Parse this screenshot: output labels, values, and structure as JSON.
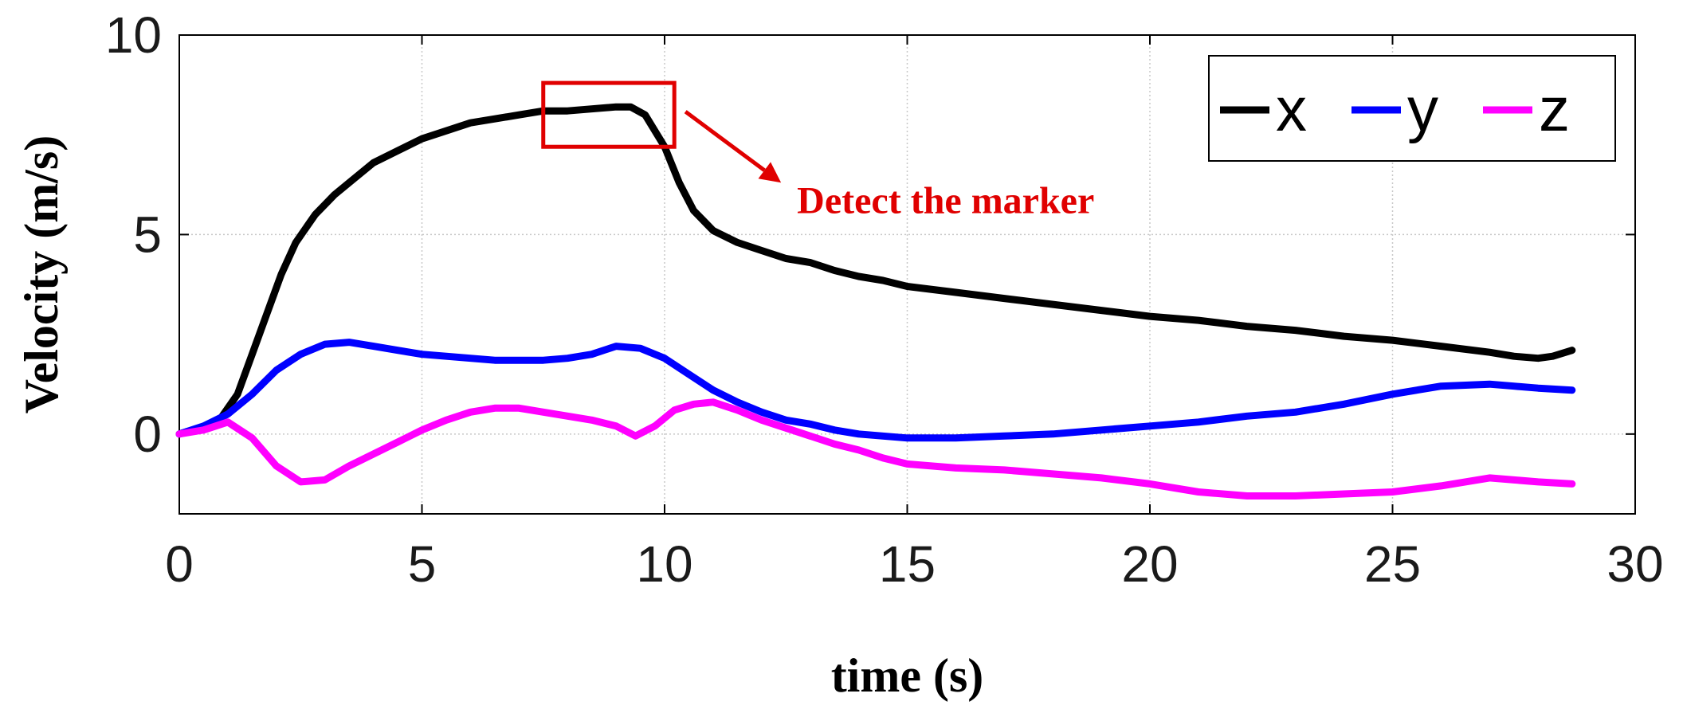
{
  "chart_data": {
    "type": "line",
    "title": "",
    "xlabel": "time (s)",
    "ylabel": "Velocity (m/s)",
    "xlim": [
      0,
      30
    ],
    "ylim": [
      -2,
      10
    ],
    "xticks": [
      0,
      5,
      10,
      15,
      20,
      25,
      30
    ],
    "xtick_labels": [
      "0",
      "5",
      "10",
      "15",
      "20",
      "25",
      "30"
    ],
    "yticks": [
      0,
      5,
      10
    ],
    "ytick_labels": [
      "0",
      "5",
      "10"
    ],
    "grid": true,
    "legend_position": "top-right",
    "series": [
      {
        "name": "x",
        "color": "#000000",
        "points": [
          [
            0,
            0
          ],
          [
            0.8,
            0.3
          ],
          [
            1.2,
            1.0
          ],
          [
            1.5,
            2.0
          ],
          [
            1.8,
            3.0
          ],
          [
            2.1,
            4.0
          ],
          [
            2.4,
            4.8
          ],
          [
            2.8,
            5.5
          ],
          [
            3.2,
            6.0
          ],
          [
            3.6,
            6.4
          ],
          [
            4.0,
            6.8
          ],
          [
            4.5,
            7.1
          ],
          [
            5.0,
            7.4
          ],
          [
            5.5,
            7.6
          ],
          [
            6.0,
            7.8
          ],
          [
            6.5,
            7.9
          ],
          [
            7.0,
            8.0
          ],
          [
            7.5,
            8.1
          ],
          [
            8.0,
            8.1
          ],
          [
            8.5,
            8.15
          ],
          [
            9.0,
            8.2
          ],
          [
            9.3,
            8.2
          ],
          [
            9.6,
            8.0
          ],
          [
            10.0,
            7.2
          ],
          [
            10.3,
            6.3
          ],
          [
            10.6,
            5.6
          ],
          [
            11.0,
            5.1
          ],
          [
            11.5,
            4.8
          ],
          [
            12.0,
            4.6
          ],
          [
            12.5,
            4.4
          ],
          [
            13.0,
            4.3
          ],
          [
            13.5,
            4.1
          ],
          [
            14.0,
            3.95
          ],
          [
            14.5,
            3.85
          ],
          [
            15.0,
            3.7
          ],
          [
            16.0,
            3.55
          ],
          [
            17.0,
            3.4
          ],
          [
            18.0,
            3.25
          ],
          [
            19.0,
            3.1
          ],
          [
            20.0,
            2.95
          ],
          [
            21.0,
            2.85
          ],
          [
            22.0,
            2.7
          ],
          [
            23.0,
            2.6
          ],
          [
            24.0,
            2.45
          ],
          [
            25.0,
            2.35
          ],
          [
            26.0,
            2.2
          ],
          [
            27.0,
            2.05
          ],
          [
            27.5,
            1.95
          ],
          [
            28.0,
            1.9
          ],
          [
            28.3,
            1.95
          ],
          [
            28.7,
            2.1
          ]
        ]
      },
      {
        "name": "y",
        "color": "#0000ff",
        "points": [
          [
            0,
            0
          ],
          [
            0.5,
            0.2
          ],
          [
            1.0,
            0.5
          ],
          [
            1.5,
            1.0
          ],
          [
            2.0,
            1.6
          ],
          [
            2.5,
            2.0
          ],
          [
            3.0,
            2.25
          ],
          [
            3.5,
            2.3
          ],
          [
            4.0,
            2.2
          ],
          [
            4.5,
            2.1
          ],
          [
            5.0,
            2.0
          ],
          [
            5.5,
            1.95
          ],
          [
            6.0,
            1.9
          ],
          [
            6.5,
            1.85
          ],
          [
            7.0,
            1.85
          ],
          [
            7.5,
            1.85
          ],
          [
            8.0,
            1.9
          ],
          [
            8.5,
            2.0
          ],
          [
            9.0,
            2.2
          ],
          [
            9.5,
            2.15
          ],
          [
            10.0,
            1.9
          ],
          [
            10.5,
            1.5
          ],
          [
            11.0,
            1.1
          ],
          [
            11.5,
            0.8
          ],
          [
            12.0,
            0.55
          ],
          [
            12.5,
            0.35
          ],
          [
            13.0,
            0.25
          ],
          [
            13.5,
            0.1
          ],
          [
            14.0,
            0.0
          ],
          [
            14.5,
            -0.05
          ],
          [
            15.0,
            -0.1
          ],
          [
            16.0,
            -0.1
          ],
          [
            17.0,
            -0.05
          ],
          [
            18.0,
            0.0
          ],
          [
            19.0,
            0.1
          ],
          [
            20.0,
            0.2
          ],
          [
            21.0,
            0.3
          ],
          [
            22.0,
            0.45
          ],
          [
            23.0,
            0.55
          ],
          [
            24.0,
            0.75
          ],
          [
            25.0,
            1.0
          ],
          [
            26.0,
            1.2
          ],
          [
            27.0,
            1.25
          ],
          [
            27.5,
            1.2
          ],
          [
            28.0,
            1.15
          ],
          [
            28.7,
            1.1
          ]
        ]
      },
      {
        "name": "z",
        "color": "#ff00ff",
        "points": [
          [
            0,
            0
          ],
          [
            0.5,
            0.1
          ],
          [
            1.0,
            0.3
          ],
          [
            1.5,
            -0.1
          ],
          [
            2.0,
            -0.8
          ],
          [
            2.5,
            -1.2
          ],
          [
            3.0,
            -1.15
          ],
          [
            3.5,
            -0.8
          ],
          [
            4.0,
            -0.5
          ],
          [
            4.5,
            -0.2
          ],
          [
            5.0,
            0.1
          ],
          [
            5.5,
            0.35
          ],
          [
            6.0,
            0.55
          ],
          [
            6.5,
            0.65
          ],
          [
            7.0,
            0.65
          ],
          [
            7.5,
            0.55
          ],
          [
            8.0,
            0.45
          ],
          [
            8.5,
            0.35
          ],
          [
            9.0,
            0.2
          ],
          [
            9.4,
            -0.05
          ],
          [
            9.8,
            0.2
          ],
          [
            10.2,
            0.6
          ],
          [
            10.6,
            0.75
          ],
          [
            11.0,
            0.8
          ],
          [
            11.5,
            0.6
          ],
          [
            12.0,
            0.35
          ],
          [
            12.5,
            0.15
          ],
          [
            13.0,
            -0.05
          ],
          [
            13.5,
            -0.25
          ],
          [
            14.0,
            -0.4
          ],
          [
            14.5,
            -0.6
          ],
          [
            15.0,
            -0.75
          ],
          [
            16.0,
            -0.85
          ],
          [
            17.0,
            -0.9
          ],
          [
            18.0,
            -1.0
          ],
          [
            19.0,
            -1.1
          ],
          [
            20.0,
            -1.25
          ],
          [
            21.0,
            -1.45
          ],
          [
            22.0,
            -1.55
          ],
          [
            23.0,
            -1.55
          ],
          [
            24.0,
            -1.5
          ],
          [
            25.0,
            -1.45
          ],
          [
            26.0,
            -1.3
          ],
          [
            27.0,
            -1.1
          ],
          [
            27.5,
            -1.15
          ],
          [
            28.0,
            -1.2
          ],
          [
            28.7,
            -1.25
          ]
        ]
      }
    ],
    "annotation": {
      "text": "Detect the marker",
      "color": "#e00000",
      "box_x": [
        7.5,
        10.2
      ],
      "box_y": [
        7.2,
        8.8
      ],
      "arrow_to": [
        12.4,
        6.3
      ]
    }
  }
}
